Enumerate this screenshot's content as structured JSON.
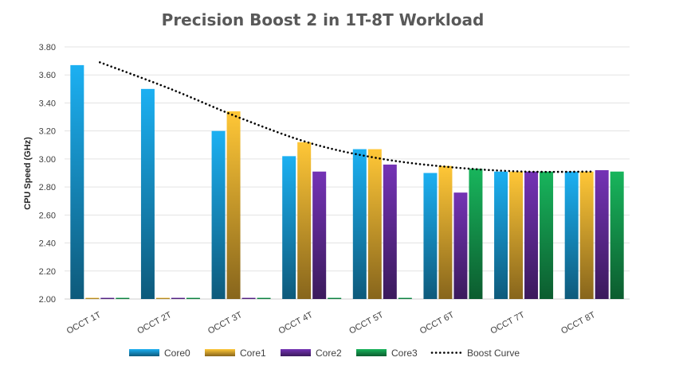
{
  "chart_data": {
    "type": "bar",
    "title": "Precision Boost 2 in 1T-8T Workload",
    "ylabel": "CPU Speed (GHz)",
    "xlabel": "",
    "ylim": [
      2.0,
      3.8
    ],
    "yticks": [
      "2.00",
      "2.20",
      "2.40",
      "2.60",
      "2.80",
      "3.00",
      "3.20",
      "3.40",
      "3.60",
      "3.80"
    ],
    "categories": [
      "OCCT 1T",
      "OCCT 2T",
      "OCCT 3T",
      "OCCT 4T",
      "OCCT 5T",
      "OCCT 6T",
      "OCCT 7T",
      "OCCT 8T"
    ],
    "series": [
      {
        "name": "Core0",
        "color": "#1aa3e0",
        "values": [
          3.67,
          3.5,
          3.2,
          3.02,
          3.07,
          2.9,
          2.91,
          2.91
        ]
      },
      {
        "name": "Core1",
        "color": "#f6b833",
        "values": [
          2.0,
          2.0,
          3.34,
          3.12,
          3.07,
          2.95,
          2.91,
          2.91
        ]
      },
      {
        "name": "Core2",
        "color": "#6b2fa8",
        "values": [
          2.0,
          2.0,
          2.0,
          2.91,
          2.96,
          2.76,
          2.91,
          2.92
        ]
      },
      {
        "name": "Core3",
        "color": "#16a855",
        "values": [
          2.0,
          2.0,
          2.0,
          2.0,
          2.0,
          2.93,
          2.91,
          2.91
        ]
      }
    ],
    "trendline": {
      "name": "Boost Curve",
      "style": "dotted",
      "color": "#000000",
      "values": [
        3.69,
        3.5,
        3.29,
        3.11,
        3.0,
        2.94,
        2.91,
        2.91
      ]
    },
    "grid": true,
    "legend_position": "bottom"
  }
}
